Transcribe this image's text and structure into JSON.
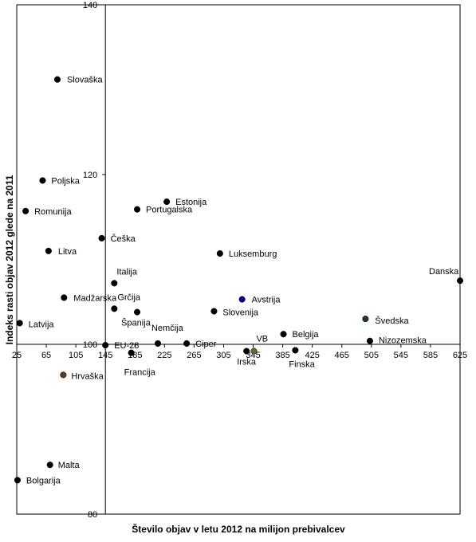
{
  "chart_data": {
    "type": "scatter",
    "title": "",
    "xlabel": "Število objav v letu 2012 na milijon prebivalcev",
    "ylabel": "Indeks rasti objav 2012 glede na 2011",
    "xlim": [
      25,
      625
    ],
    "ylim": [
      80,
      140
    ],
    "x_crosses_y_at": 100,
    "y_crosses_x_at": 145,
    "x_ticks": [
      25,
      65,
      105,
      145,
      185,
      225,
      265,
      305,
      345,
      385,
      425,
      465,
      505,
      545,
      585,
      625
    ],
    "y_ticks": [
      80,
      100,
      120,
      140
    ],
    "grid": false,
    "legend": "none",
    "colors": {
      "default": "#000000",
      "highlight_label": "#ff0000",
      "avstrija": "#00007f",
      "vb": "#666633",
      "svedska": "#1e3b1e",
      "hrvaska": "#5c3a2a"
    },
    "points": [
      {
        "label": "Slovaška",
        "x": 80,
        "y": 131.2
      },
      {
        "label": "Poljska",
        "x": 60,
        "y": 119.3
      },
      {
        "label": "Romunija",
        "x": 37,
        "y": 115.7
      },
      {
        "label": "Litva",
        "x": 68,
        "y": 111.0
      },
      {
        "label": "Latvija",
        "x": 29,
        "y": 102.5
      },
      {
        "label": "Madžarska",
        "x": 89,
        "y": 105.5
      },
      {
        "label": "Hrvaška",
        "x": 88,
        "y": 96.4
      },
      {
        "label": "Malta",
        "x": 70,
        "y": 85.8
      },
      {
        "label": "Bolgarija",
        "x": 26,
        "y": 84.0
      },
      {
        "label": "Češka",
        "x": 140,
        "y": 112.5
      },
      {
        "label": "Italija",
        "x": 157,
        "y": 107.2
      },
      {
        "label": "Grčija",
        "x": 157,
        "y": 104.2
      },
      {
        "label": "Španija",
        "x": 188,
        "y": 103.8
      },
      {
        "label": "EU-28",
        "x": 145,
        "y": 99.9
      },
      {
        "label": "Francija",
        "x": 180,
        "y": 99.0
      },
      {
        "label": "Nemčija",
        "x": 216,
        "y": 100.1
      },
      {
        "label": "Portugalska",
        "x": 188,
        "y": 115.9
      },
      {
        "label": "Estonija",
        "x": 228,
        "y": 116.8
      },
      {
        "label": "Ciper",
        "x": 255,
        "y": 100.1
      },
      {
        "label": "Luksemburg",
        "x": 300,
        "y": 110.7
      },
      {
        "label": "Avstrija",
        "x": 330,
        "y": 105.3
      },
      {
        "label": "Slovenija",
        "x": 292,
        "y": 103.9,
        "highlight": true
      },
      {
        "label": "Irska",
        "x": 336,
        "y": 99.2
      },
      {
        "label": "VB",
        "x": 346,
        "y": 99.2
      },
      {
        "label": "Belgija",
        "x": 386,
        "y": 101.2
      },
      {
        "label": "Finska",
        "x": 402,
        "y": 99.3
      },
      {
        "label": "Švedska",
        "x": 497,
        "y": 103.0
      },
      {
        "label": "Nizozemska",
        "x": 503,
        "y": 100.4
      },
      {
        "label": "Danska",
        "x": 625,
        "y": 107.5
      }
    ]
  }
}
